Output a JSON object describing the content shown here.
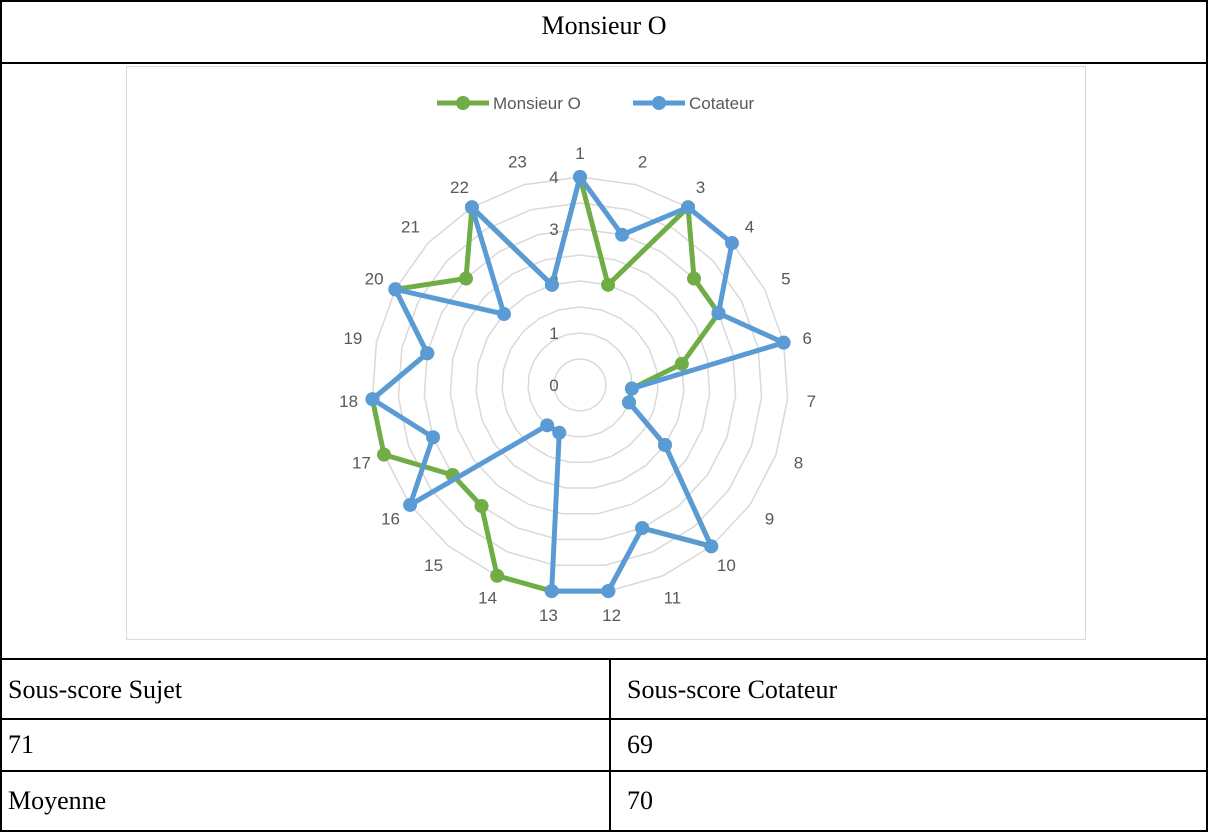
{
  "table": {
    "title": "Monsieur O",
    "header": [
      "Sous-score Sujet",
      "Sous-score Cotateur"
    ],
    "rows": [
      [
        "71",
        "69"
      ],
      [
        "Moyenne",
        "70"
      ]
    ]
  },
  "chart_data": {
    "type": "radar",
    "categories": [
      "1",
      "2",
      "3",
      "4",
      "5",
      "6",
      "7",
      "8",
      "9",
      "10",
      "11",
      "12",
      "13",
      "14",
      "15",
      "16",
      "17",
      "18",
      "19",
      "20",
      "21",
      "22",
      "23"
    ],
    "radial_ticks": [
      "0",
      "1",
      "2",
      "3",
      "4"
    ],
    "rlim": [
      0,
      4
    ],
    "grid": true,
    "legend_position": "top",
    "series": [
      {
        "name": "Monsieur O",
        "color": "#70ad47",
        "values": [
          4,
          2,
          4,
          3,
          3,
          2,
          1,
          1,
          2,
          4,
          3,
          4,
          4,
          4,
          3,
          3,
          4,
          4,
          3,
          4,
          3,
          4,
          2
        ]
      },
      {
        "name": "Cotateur",
        "color": "#5b9bd5",
        "values": [
          4,
          3,
          4,
          4,
          3,
          4,
          1,
          1,
          2,
          4,
          3,
          4,
          4,
          1,
          1,
          4,
          3,
          4,
          3,
          4,
          2,
          4,
          2
        ]
      }
    ]
  }
}
